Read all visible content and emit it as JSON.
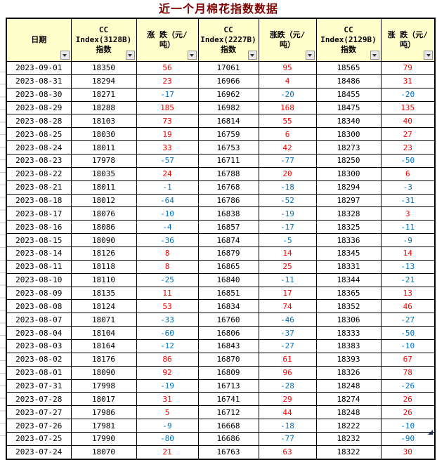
{
  "title": "近一个月棉花指数数据",
  "colors": {
    "title": "#800000",
    "header_bg": "#FFFFCC",
    "positive": "#FF0000",
    "negative": "#0070C0",
    "border": "#000000",
    "end_marker": "#17375E"
  },
  "icons": {
    "header_filter": "caret-down"
  },
  "table": {
    "columns": [
      {
        "label": "日期"
      },
      {
        "label": "CC\nIndex(3128B)\n指数"
      },
      {
        "label": "涨 跌（元/\n吨）"
      },
      {
        "label": "CC\nIndex(2227B)\n指数"
      },
      {
        "label": "涨跌（元/\n吨）"
      },
      {
        "label": "CC\nIndex(2129B)\n指数"
      },
      {
        "label": "涨 跌（元/\n吨）"
      }
    ],
    "rows": [
      [
        "2023-09-01",
        18350,
        56,
        17061,
        95,
        18565,
        79
      ],
      [
        "2023-08-31",
        18294,
        23,
        16966,
        4,
        18486,
        31
      ],
      [
        "2023-08-30",
        18271,
        -17,
        16962,
        -20,
        18455,
        -20
      ],
      [
        "2023-08-29",
        18288,
        185,
        16982,
        168,
        18475,
        135
      ],
      [
        "2023-08-28",
        18103,
        73,
        16814,
        55,
        18340,
        40
      ],
      [
        "2023-08-25",
        18030,
        19,
        16759,
        6,
        18300,
        27
      ],
      [
        "2023-08-24",
        18011,
        33,
        16753,
        42,
        18273,
        23
      ],
      [
        "2023-08-23",
        17978,
        -57,
        16711,
        -77,
        18250,
        -50
      ],
      [
        "2023-08-22",
        18035,
        24,
        16788,
        20,
        18300,
        6
      ],
      [
        "2023-08-21",
        18011,
        -1,
        16768,
        -18,
        18294,
        -3
      ],
      [
        "2023-08-18",
        18012,
        -64,
        16786,
        -52,
        18297,
        -31
      ],
      [
        "2023-08-17",
        18076,
        -10,
        16838,
        -19,
        18328,
        3
      ],
      [
        "2023-08-16",
        18086,
        -4,
        16857,
        -17,
        18325,
        -11
      ],
      [
        "2023-08-15",
        18090,
        -36,
        16874,
        -5,
        18336,
        -9
      ],
      [
        "2023-08-14",
        18126,
        8,
        16879,
        14,
        18345,
        14
      ],
      [
        "2023-08-11",
        18118,
        8,
        16865,
        25,
        18331,
        -13
      ],
      [
        "2023-08-10",
        18110,
        -25,
        16840,
        -11,
        18344,
        -21
      ],
      [
        "2023-08-09",
        18135,
        11,
        16851,
        17,
        18365,
        13
      ],
      [
        "2023-08-08",
        18124,
        53,
        16834,
        74,
        18352,
        46
      ],
      [
        "2023-08-07",
        18071,
        -33,
        16760,
        -46,
        18306,
        -27
      ],
      [
        "2023-08-04",
        18104,
        -60,
        16806,
        -37,
        18333,
        -50
      ],
      [
        "2023-08-03",
        18164,
        -12,
        16843,
        -27,
        18383,
        -10
      ],
      [
        "2023-08-02",
        18176,
        86,
        16870,
        61,
        18393,
        67
      ],
      [
        "2023-08-01",
        18090,
        92,
        16809,
        96,
        18326,
        78
      ],
      [
        "2023-07-31",
        17998,
        -19,
        16713,
        -28,
        18248,
        -26
      ],
      [
        "2023-07-28",
        18017,
        31,
        16741,
        29,
        18274,
        26
      ],
      [
        "2023-07-27",
        17986,
        5,
        16712,
        44,
        18248,
        26
      ],
      [
        "2023-07-26",
        17981,
        -9,
        16668,
        -18,
        18222,
        -10
      ],
      [
        "2023-07-25",
        17990,
        -80,
        16686,
        -77,
        18232,
        -90
      ],
      [
        "2023-07-24",
        18070,
        21,
        16763,
        63,
        18322,
        30
      ]
    ]
  }
}
